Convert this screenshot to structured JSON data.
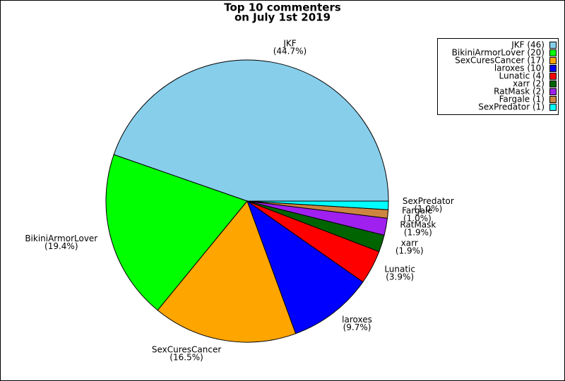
{
  "chart_data": {
    "type": "pie",
    "title": [
      "Top 10 commenters",
      "on July 1st 2019"
    ],
    "categories": [
      "JKF",
      "BikiniArmorLover",
      "SexCuresCancer",
      "laroxes",
      "Lunatic",
      "xarr",
      "RatMask",
      "Fargale",
      "SexPredator"
    ],
    "values": [
      46,
      20,
      17,
      10,
      4,
      2,
      2,
      1,
      1
    ],
    "colors": [
      "#87ceeb",
      "#00ff00",
      "#ffa500",
      "#0000ff",
      "#ff0000",
      "#006400",
      "#a020f0",
      "#cd853f",
      "#00ffff"
    ],
    "legend_labels": [
      "JKF (46)",
      "BikiniArmorLover (20)",
      "SexCuresCancer (17)",
      "laroxes (10)",
      "Lunatic (4)",
      "xarr (2)",
      "RatMask (2)",
      "Fargale (1)",
      "SexPredator (1)"
    ],
    "percents": [
      44.7,
      19.4,
      16.5,
      9.7,
      3.9,
      1.9,
      1.9,
      1.0,
      1.0
    ],
    "percent_labels": [
      "(44.7%)",
      "(19.4%)",
      "(16.5%)",
      "(9.7%)",
      "(3.9%)",
      "(1.9%)",
      "(1.9%)",
      "(1.0%)",
      "(1.0%)"
    ],
    "legend_position": "upper right"
  }
}
